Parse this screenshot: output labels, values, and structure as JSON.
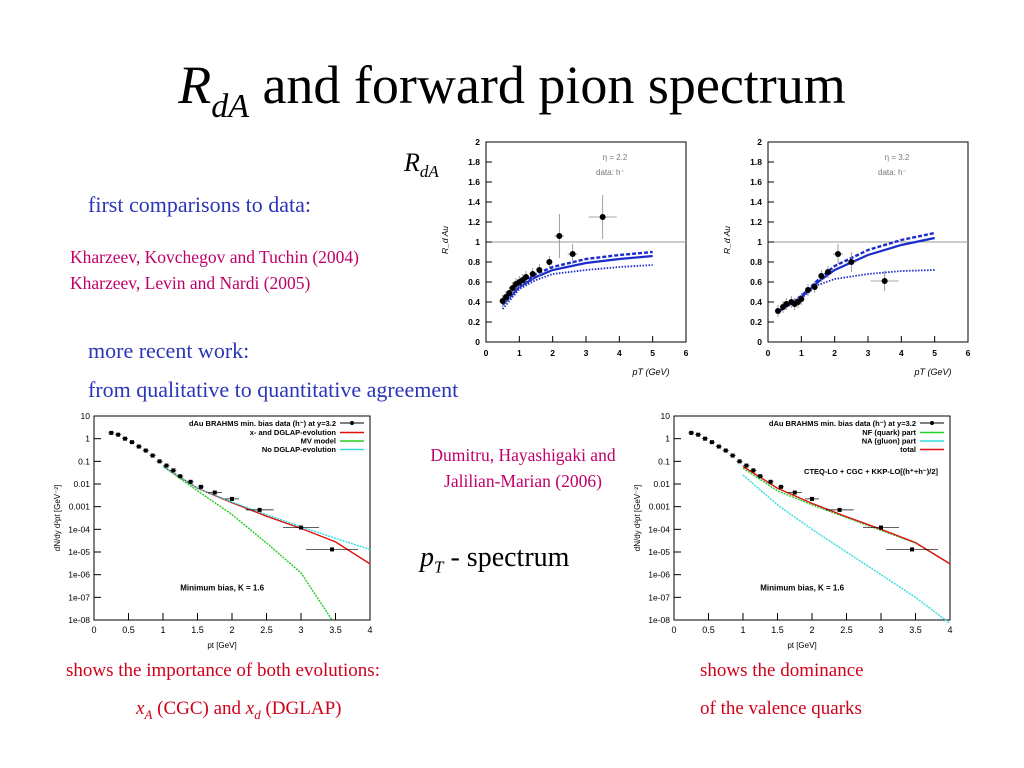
{
  "slide": {
    "title_main": "R",
    "title_sub": "dA",
    "title_rest": " and forward pion spectrum",
    "rda_label_main": "R",
    "rda_label_sub": "dA",
    "first_comparisons": "first comparisons to data:",
    "ref1": "Kharzeev, Kovchegov and Tuchin (2004)",
    "ref2": "Kharzeev, Levin and Nardi (2005)",
    "more_recent": "more recent work:",
    "qual_quant": "from qualitative to quantitative agreement",
    "ref3_line1": "Dumitru, Hayashigaki and",
    "ref3_line2": "Jalilian-Marian (2006)",
    "pt_main": "p",
    "pt_sub": "T",
    "pt_rest": " - spectrum",
    "caption_left_1": "shows the importance of both evolutions:",
    "caption_left_x1": "x",
    "caption_left_x1_sub": "A",
    "caption_left_mid": " (CGC) and ",
    "caption_left_x2": "x",
    "caption_left_x2_sub": "d",
    "caption_left_end": " (DGLAP)",
    "caption_right_1": "shows the dominance",
    "caption_right_2": "of the valence quarks"
  },
  "chart_data": [
    {
      "type": "scatter",
      "title": "",
      "annotation": "η = 2.2",
      "annotation2": "data: h⁻",
      "xlabel": "pT (GeV)",
      "ylabel": "R_d Au",
      "xlim": [
        0,
        6
      ],
      "ylim": [
        0,
        2
      ],
      "xticks": [
        "0",
        "1",
        "2",
        "3",
        "4",
        "5",
        "6"
      ],
      "yticks": [
        "0",
        "0.2",
        "0.4",
        "0.6",
        "0.8",
        "1",
        "1.2",
        "1.4",
        "1.6",
        "1.8",
        "2"
      ],
      "points": [
        [
          0.5,
          0.41
        ],
        [
          0.6,
          0.45
        ],
        [
          0.7,
          0.49
        ],
        [
          0.8,
          0.54
        ],
        [
          0.9,
          0.58
        ],
        [
          1.0,
          0.6
        ],
        [
          1.1,
          0.62
        ],
        [
          1.2,
          0.65
        ],
        [
          1.4,
          0.68
        ],
        [
          1.6,
          0.72
        ],
        [
          1.9,
          0.8
        ],
        [
          2.2,
          1.06
        ],
        [
          2.6,
          0.88
        ],
        [
          3.5,
          1.25
        ]
      ],
      "series": [
        {
          "name": "solid",
          "values": [
            [
              0.5,
              0.37
            ],
            [
              1,
              0.55
            ],
            [
              1.5,
              0.65
            ],
            [
              2,
              0.72
            ],
            [
              3,
              0.79
            ],
            [
              4,
              0.83
            ],
            [
              5,
              0.86
            ]
          ]
        },
        {
          "name": "dashed",
          "values": [
            [
              0.5,
              0.38
            ],
            [
              1,
              0.57
            ],
            [
              1.5,
              0.68
            ],
            [
              2,
              0.75
            ],
            [
              3,
              0.83
            ],
            [
              4,
              0.87
            ],
            [
              5,
              0.9
            ]
          ]
        },
        {
          "name": "dotted",
          "values": [
            [
              0.5,
              0.33
            ],
            [
              1,
              0.53
            ],
            [
              1.5,
              0.62
            ],
            [
              2,
              0.68
            ],
            [
              3,
              0.72
            ],
            [
              4,
              0.75
            ],
            [
              5,
              0.77
            ]
          ]
        }
      ]
    },
    {
      "type": "scatter",
      "title": "",
      "annotation": "η = 3.2",
      "annotation2": "data: h⁻",
      "xlabel": "pT (GeV)",
      "ylabel": "R_d Au",
      "xlim": [
        0,
        6
      ],
      "ylim": [
        0,
        2
      ],
      "xticks": [
        "0",
        "1",
        "2",
        "3",
        "4",
        "5",
        "6"
      ],
      "yticks": [
        "0",
        "0.2",
        "0.4",
        "0.6",
        "0.8",
        "1",
        "1.2",
        "1.4",
        "1.6",
        "1.8",
        "2"
      ],
      "points": [
        [
          0.3,
          0.31
        ],
        [
          0.45,
          0.35
        ],
        [
          0.55,
          0.38
        ],
        [
          0.7,
          0.4
        ],
        [
          0.8,
          0.38
        ],
        [
          0.9,
          0.4
        ],
        [
          1.0,
          0.43
        ],
        [
          1.2,
          0.52
        ],
        [
          1.4,
          0.55
        ],
        [
          1.6,
          0.66
        ],
        [
          1.8,
          0.7
        ],
        [
          2.1,
          0.88
        ],
        [
          2.5,
          0.8
        ],
        [
          3.5,
          0.61
        ]
      ],
      "series": [
        {
          "name": "solid",
          "values": [
            [
              0.3,
              0.3
            ],
            [
              1,
              0.45
            ],
            [
              1.5,
              0.6
            ],
            [
              2,
              0.72
            ],
            [
              3,
              0.87
            ],
            [
              4,
              0.97
            ],
            [
              5,
              1.04
            ]
          ]
        },
        {
          "name": "dashed",
          "values": [
            [
              0.3,
              0.3
            ],
            [
              1,
              0.46
            ],
            [
              1.5,
              0.62
            ],
            [
              2,
              0.76
            ],
            [
              3,
              0.92
            ],
            [
              4,
              1.02
            ],
            [
              5,
              1.09
            ]
          ]
        },
        {
          "name": "dotted",
          "values": [
            [
              0.3,
              0.3
            ],
            [
              1,
              0.44
            ],
            [
              1.5,
              0.57
            ],
            [
              2,
              0.63
            ],
            [
              3,
              0.68
            ],
            [
              4,
              0.71
            ],
            [
              5,
              0.72
            ]
          ]
        }
      ]
    },
    {
      "type": "line",
      "title": "dAu BRAHMS min. bias data (h⁻) at y=3.2",
      "xlabel": "pt [GeV]",
      "ylabel": "dN/dy d²pt [GeV⁻²]",
      "log_y": true,
      "xlim": [
        0,
        4
      ],
      "ylim": [
        1e-08,
        10
      ],
      "xticks": [
        "0",
        "0.5",
        "1",
        "1.5",
        "2",
        "2.5",
        "3",
        "3.5",
        "4"
      ],
      "yticks": [
        "1e-08",
        "1e-07",
        "1e-06",
        "1e-05",
        "1e-04",
        "0.001",
        "0.01",
        "0.1",
        "1",
        "10"
      ],
      "annotation": "Minimum bias,   K = 1.6",
      "legend": [
        "x- and DGLAP-evolution",
        "MV model",
        "No DGLAP-evolution"
      ],
      "points": [
        [
          0.25,
          1.8
        ],
        [
          0.35,
          1.5
        ],
        [
          0.45,
          1.0
        ],
        [
          0.55,
          0.7
        ],
        [
          0.65,
          0.45
        ],
        [
          0.75,
          0.3
        ],
        [
          0.85,
          0.18
        ],
        [
          0.95,
          0.1
        ],
        [
          1.05,
          0.065
        ],
        [
          1.15,
          0.04
        ],
        [
          1.25,
          0.022
        ],
        [
          1.4,
          0.0125
        ],
        [
          1.55,
          0.0075
        ],
        [
          1.75,
          0.0042
        ],
        [
          2.0,
          0.0022
        ],
        [
          2.4,
          0.00072
        ],
        [
          3.0,
          0.00012
        ],
        [
          3.45,
          1.3e-05
        ]
      ],
      "series": [
        {
          "name": "x- and DGLAP-evolution",
          "color": "#dd1111",
          "values": [
            [
              1,
              0.06
            ],
            [
              1.5,
              0.0065
            ],
            [
              2,
              0.0015
            ],
            [
              2.5,
              0.00038
            ],
            [
              3,
              0.00011
            ],
            [
              3.5,
              2.8e-05
            ],
            [
              4,
              3e-06
            ]
          ]
        },
        {
          "name": "MV model",
          "color": "#22cc22",
          "values": [
            [
              1,
              0.06
            ],
            [
              1.5,
              0.005
            ],
            [
              2,
              0.00045
            ],
            [
              2.5,
              2.5e-05
            ],
            [
              3,
              1.2e-06
            ],
            [
              3.45,
              1e-08
            ]
          ]
        },
        {
          "name": "No DGLAP-evolution",
          "color": "#33dddd",
          "values": [
            [
              1,
              0.06
            ],
            [
              1.5,
              0.0065
            ],
            [
              2,
              0.0016
            ],
            [
              2.5,
              0.00045
            ],
            [
              3,
              0.00013
            ],
            [
              3.5,
              4e-05
            ],
            [
              4,
              1.3e-05
            ]
          ]
        }
      ]
    },
    {
      "type": "line",
      "title": "dAu BRAHMS min. bias data (h⁻) at y=3.2",
      "xlabel": "pt [GeV]",
      "ylabel": "dN/dy d²pt [GeV⁻²]",
      "log_y": true,
      "xlim": [
        0,
        4
      ],
      "ylim": [
        1e-08,
        10
      ],
      "xticks": [
        "0",
        "0.5",
        "1",
        "1.5",
        "2",
        "2.5",
        "3",
        "3.5",
        "4"
      ],
      "yticks": [
        "1e-08",
        "1e-07",
        "1e-06",
        "1e-05",
        "1e-04",
        "0.001",
        "0.01",
        "0.1",
        "1",
        "10"
      ],
      "annotation": "Minimum bias,   K = 1.6",
      "annotation2": "CTEQ-LO + CGC + KKP-LO[(h⁺+h⁻)/2]",
      "legend": [
        "NF (quark) part",
        "NA (gluon) part",
        "total"
      ],
      "points": [
        [
          0.25,
          1.8
        ],
        [
          0.35,
          1.5
        ],
        [
          0.45,
          1.0
        ],
        [
          0.55,
          0.7
        ],
        [
          0.65,
          0.45
        ],
        [
          0.75,
          0.3
        ],
        [
          0.85,
          0.18
        ],
        [
          0.95,
          0.1
        ],
        [
          1.05,
          0.065
        ],
        [
          1.15,
          0.04
        ],
        [
          1.25,
          0.022
        ],
        [
          1.4,
          0.0125
        ],
        [
          1.55,
          0.0075
        ],
        [
          1.75,
          0.0042
        ],
        [
          2.0,
          0.0022
        ],
        [
          2.4,
          0.00072
        ],
        [
          3.0,
          0.00012
        ],
        [
          3.45,
          1.3e-05
        ]
      ],
      "series": [
        {
          "name": "NF (quark) part",
          "color": "#22cc22",
          "values": [
            [
              1,
              0.05
            ],
            [
              1.5,
              0.005
            ],
            [
              2,
              0.0012
            ],
            [
              2.5,
              0.00033
            ],
            [
              3,
              9e-05
            ],
            [
              3.5,
              2.5e-05
            ],
            [
              4,
              3e-06
            ]
          ]
        },
        {
          "name": "NA (gluon) part",
          "color": "#33dddd",
          "values": [
            [
              1,
              0.025
            ],
            [
              1.5,
              0.0012
            ],
            [
              2,
              0.0001
            ],
            [
              2.5,
              1e-05
            ],
            [
              3,
              1e-06
            ],
            [
              3.5,
              1e-07
            ],
            [
              4,
              7e-09
            ]
          ]
        },
        {
          "name": "total",
          "color": "#dd1111",
          "values": [
            [
              1,
              0.06
            ],
            [
              1.5,
              0.0065
            ],
            [
              2,
              0.0014
            ],
            [
              2.5,
              0.00036
            ],
            [
              3,
              0.0001
            ],
            [
              3.5,
              2.6e-05
            ],
            [
              4,
              3e-06
            ]
          ]
        }
      ]
    }
  ]
}
